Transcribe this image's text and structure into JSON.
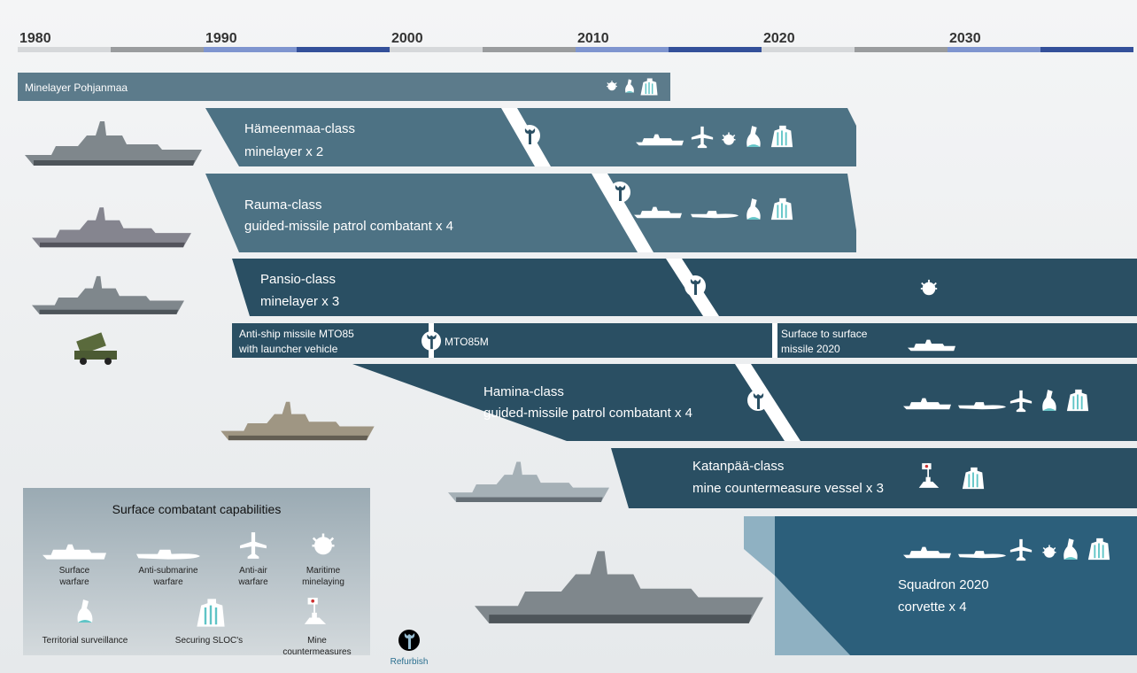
{
  "timeline": {
    "years": [
      "1980",
      "1990",
      "2000",
      "2010",
      "2020",
      "2030"
    ]
  },
  "programs": [
    {
      "label": [
        "Minelayer Pohjanmaa"
      ]
    },
    {
      "label": [
        "Hämeenmaa-class",
        "minelayer x 2"
      ]
    },
    {
      "label": [
        "Rauma-class",
        "guided-missile patrol combatant x 4"
      ]
    },
    {
      "label": [
        "Pansio-class",
        "minelayer x 3"
      ]
    },
    {
      "label": [
        "Anti-ship missile MTO85",
        "with launcher vehicle"
      ],
      "upgrade": "MTO85M",
      "successor": [
        "Surface to surface",
        "missile 2020"
      ]
    },
    {
      "label": [
        "Hamina-class",
        "guided-missile patrol combatant x 4"
      ]
    },
    {
      "label": [
        "Katanpää-class",
        "mine countermeasure vessel x 3"
      ]
    },
    {
      "label": [
        "Squadron 2020",
        "corvette x 4"
      ]
    }
  ],
  "legend": {
    "title": "Surface combatant capabilities",
    "items": [
      [
        "Surface",
        "warfare"
      ],
      [
        "Anti-submarine",
        "warfare"
      ],
      [
        "Anti-air",
        "warfare"
      ],
      [
        "Maritime",
        "minelaying"
      ],
      [
        "Territorial surveillance"
      ],
      [
        "Securing SLOC's"
      ],
      [
        "Mine",
        "countermeasures"
      ]
    ]
  },
  "refurbish": "Refurbish"
}
